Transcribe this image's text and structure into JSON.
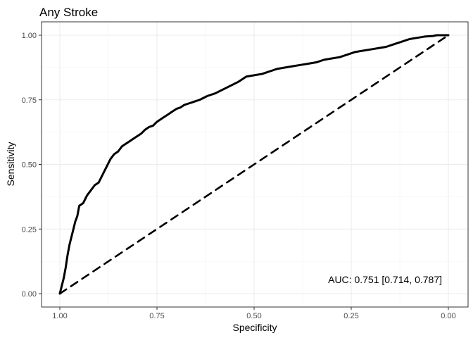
{
  "chart_data": {
    "type": "line",
    "title": "Any Stroke",
    "xlabel": "Specificity",
    "ylabel": "Sensitivity",
    "x_reversed": true,
    "xlim": [
      1.0,
      0.0
    ],
    "ylim": [
      0.0,
      1.0
    ],
    "x_ticks": [
      "1.00",
      "0.75",
      "0.50",
      "0.25",
      "0.00"
    ],
    "y_ticks": [
      "0.00",
      "0.25",
      "0.50",
      "0.75",
      "1.00"
    ],
    "grid": true,
    "annotation": "AUC: 0.751 [0.714, 0.787]",
    "series": [
      {
        "style": "solid",
        "color": "#000000",
        "x": [
          1.0,
          0.995,
          0.99,
          0.985,
          0.98,
          0.975,
          0.97,
          0.965,
          0.96,
          0.955,
          0.95,
          0.94,
          0.93,
          0.92,
          0.91,
          0.9,
          0.89,
          0.88,
          0.87,
          0.86,
          0.85,
          0.84,
          0.83,
          0.82,
          0.81,
          0.8,
          0.79,
          0.78,
          0.77,
          0.76,
          0.75,
          0.74,
          0.73,
          0.72,
          0.71,
          0.7,
          0.69,
          0.68,
          0.67,
          0.66,
          0.65,
          0.64,
          0.62,
          0.6,
          0.58,
          0.56,
          0.54,
          0.52,
          0.5,
          0.48,
          0.46,
          0.44,
          0.42,
          0.4,
          0.38,
          0.36,
          0.34,
          0.32,
          0.3,
          0.28,
          0.26,
          0.24,
          0.22,
          0.2,
          0.18,
          0.16,
          0.14,
          0.12,
          0.1,
          0.08,
          0.06,
          0.04,
          0.03,
          0.02,
          0.01,
          0.0
        ],
        "y": [
          0.0,
          0.03,
          0.06,
          0.1,
          0.15,
          0.19,
          0.22,
          0.25,
          0.28,
          0.3,
          0.34,
          0.35,
          0.38,
          0.4,
          0.42,
          0.43,
          0.46,
          0.49,
          0.52,
          0.54,
          0.55,
          0.57,
          0.58,
          0.59,
          0.6,
          0.61,
          0.62,
          0.635,
          0.645,
          0.65,
          0.665,
          0.675,
          0.685,
          0.695,
          0.705,
          0.715,
          0.72,
          0.73,
          0.735,
          0.74,
          0.745,
          0.75,
          0.765,
          0.775,
          0.79,
          0.805,
          0.82,
          0.84,
          0.845,
          0.85,
          0.86,
          0.87,
          0.875,
          0.88,
          0.885,
          0.89,
          0.895,
          0.905,
          0.91,
          0.915,
          0.925,
          0.935,
          0.94,
          0.945,
          0.95,
          0.955,
          0.965,
          0.975,
          0.985,
          0.99,
          0.995,
          0.997,
          1.0,
          1.0,
          1.0,
          1.0
        ]
      },
      {
        "style": "dashed",
        "color": "#000000",
        "x": [
          1.0,
          0.0
        ],
        "y": [
          0.0,
          1.0
        ]
      }
    ]
  }
}
